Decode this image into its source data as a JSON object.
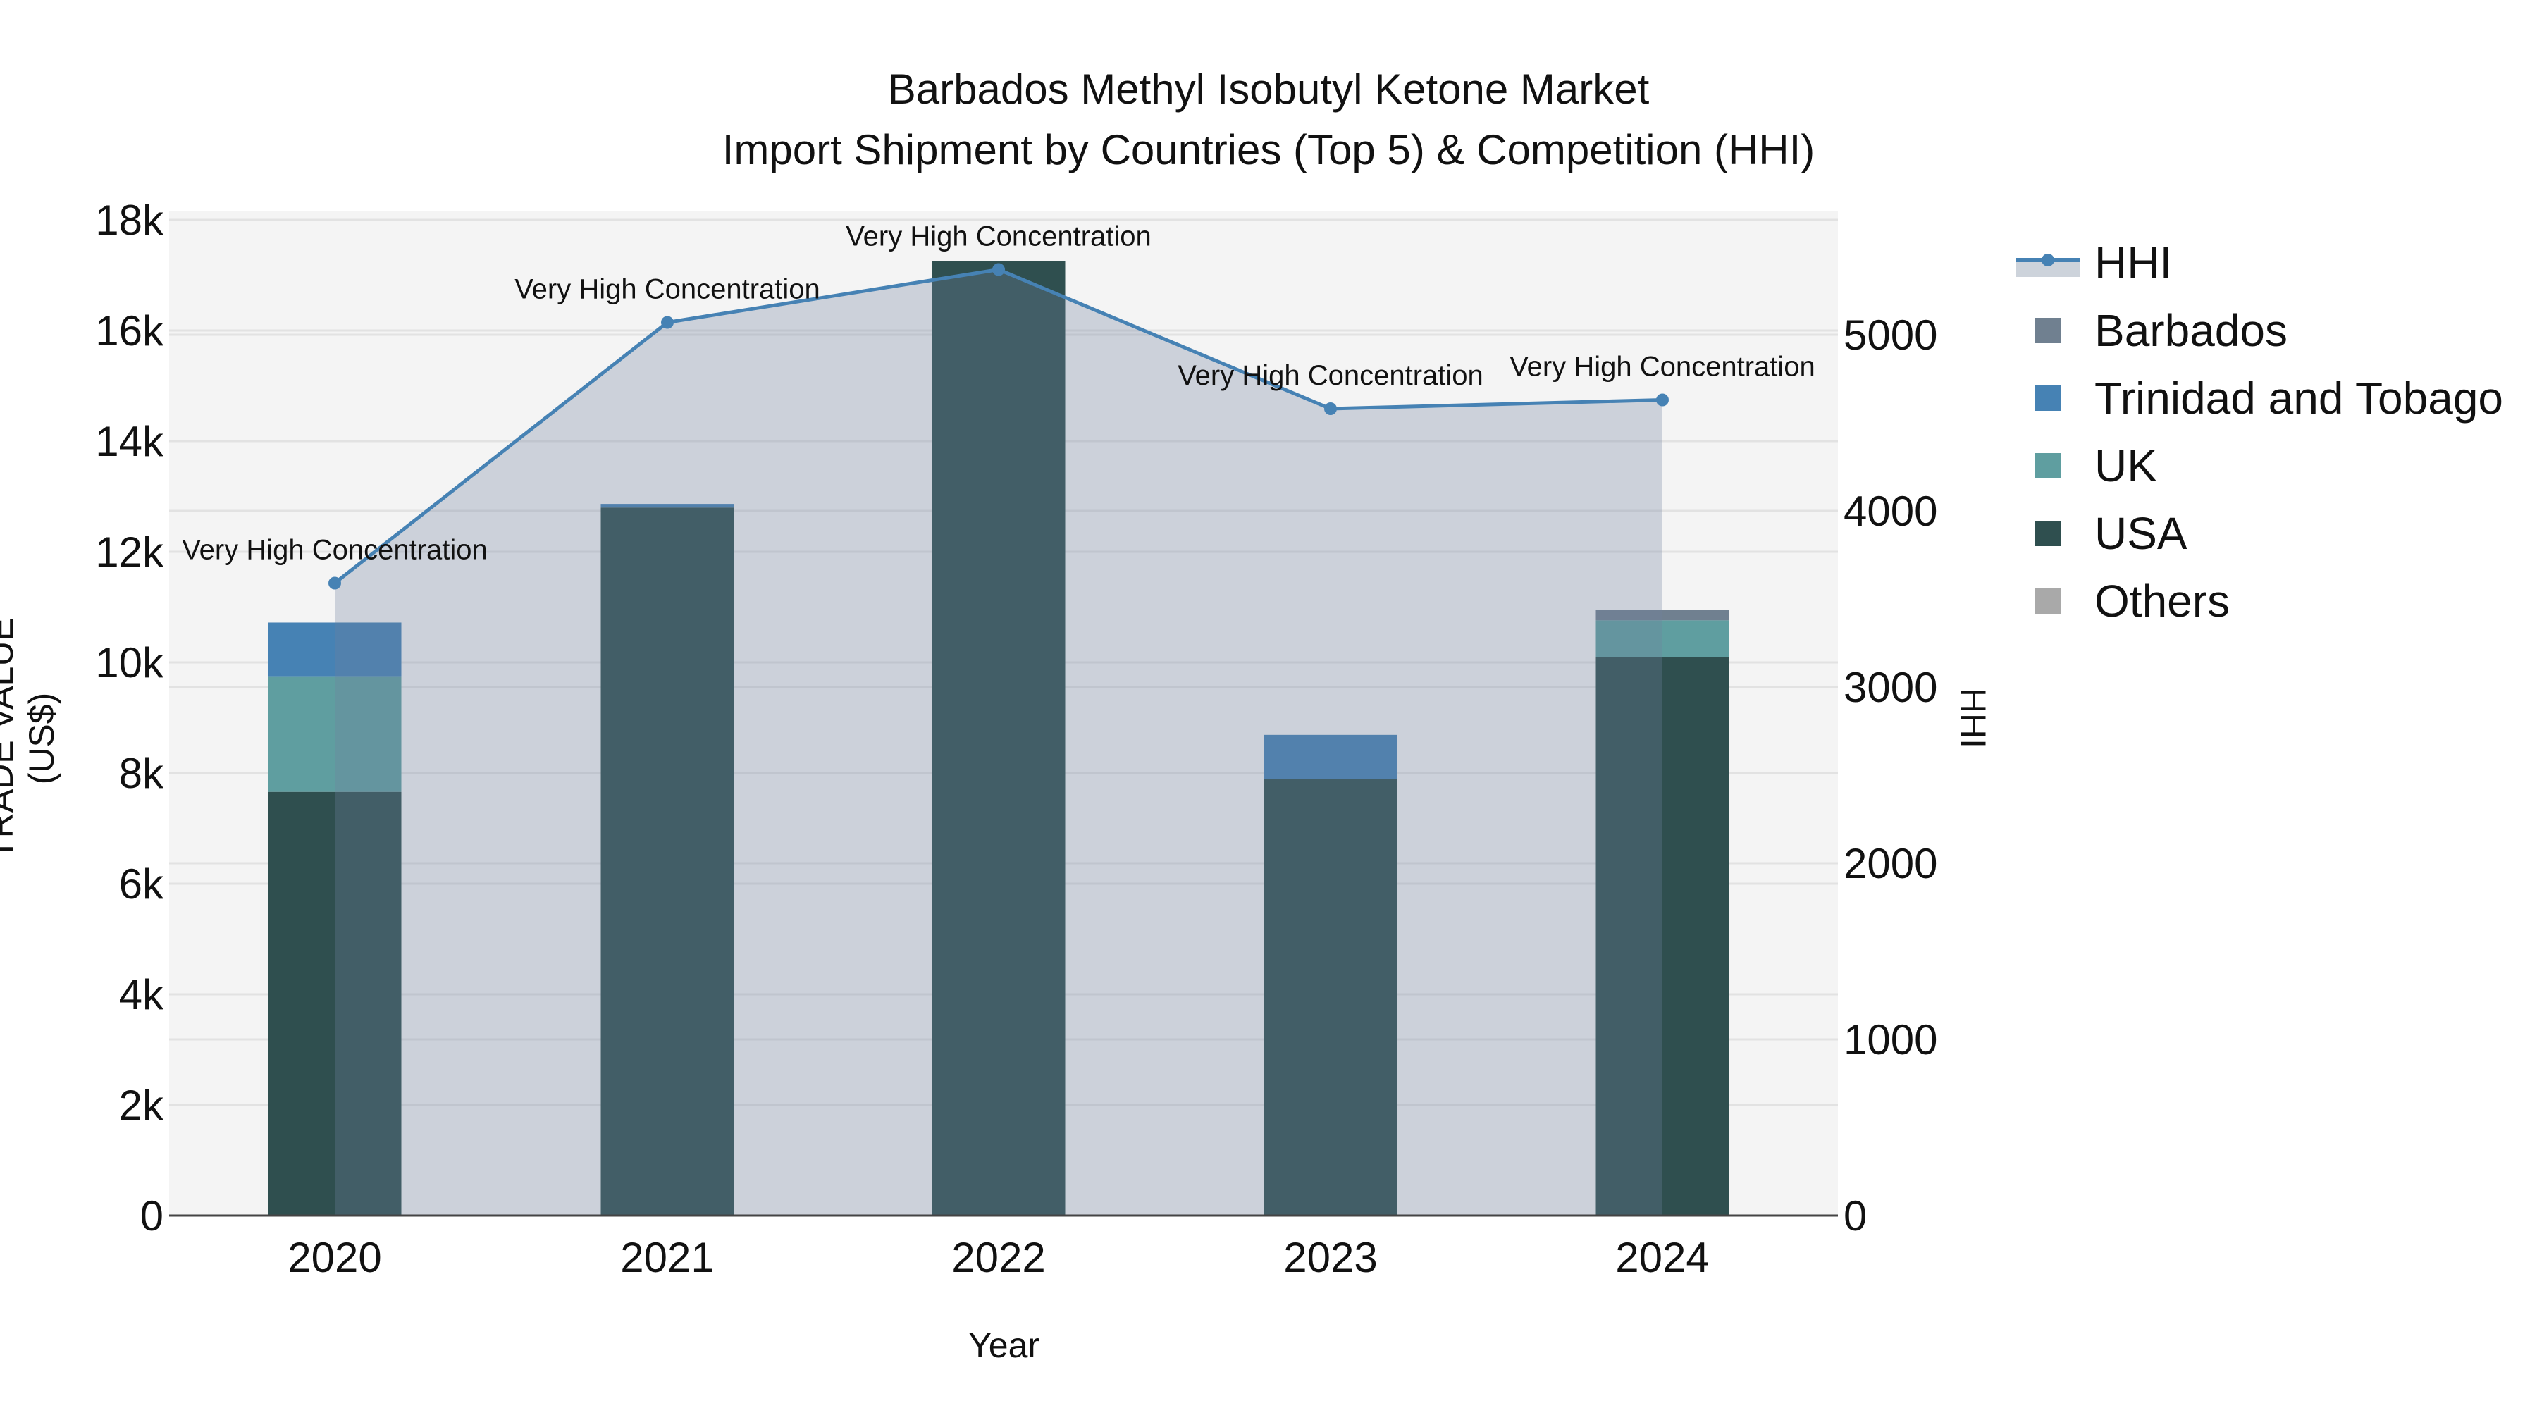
{
  "title": {
    "line1": "Barbados Methyl Isobutyl Ketone Market",
    "line2": "Import Shipment by Countries (Top 5) & Competition (HHI)"
  },
  "axes": {
    "x_title": "Year",
    "y_left_title": "TRADE VALUE (US$)",
    "y_right_title": "HHI",
    "y_left_ticks": [
      "0",
      "2k",
      "4k",
      "6k",
      "8k",
      "10k",
      "12k",
      "14k",
      "16k",
      "18k"
    ],
    "y_right_ticks": [
      "0",
      "1000",
      "2000",
      "3000",
      "4000",
      "5000"
    ],
    "x_ticks": [
      "2020",
      "2021",
      "2022",
      "2023",
      "2024"
    ]
  },
  "legend": [
    {
      "key": "hhi",
      "label": "HHI"
    },
    {
      "key": "barbados",
      "label": "Barbados"
    },
    {
      "key": "tt",
      "label": "Trinidad and Tobago"
    },
    {
      "key": "uk",
      "label": "UK"
    },
    {
      "key": "usa",
      "label": "USA"
    },
    {
      "key": "others",
      "label": "Others"
    }
  ],
  "colors": {
    "barbados": "#708090",
    "tt": "#4682B4",
    "uk": "#5F9EA0",
    "usa": "#2F4F4F",
    "others": "#A9A9A9",
    "hhi_line": "#4682B4",
    "hhi_fill": "rgba(112,128,160,0.3)",
    "plot_bg": "#F4F4F4",
    "grid": "#E2E2E2"
  },
  "chart_data": {
    "type": "bar",
    "title": "Barbados Methyl Isobutyl Ketone Market\nImport Shipment by Countries (Top 5) & Competition (HHI)",
    "xlabel": "Year",
    "ylabel": "TRADE VALUE (US$)",
    "y2label": "HHI",
    "categories": [
      "2020",
      "2021",
      "2022",
      "2023",
      "2024"
    ],
    "barmode": "stack",
    "series": [
      {
        "name": "USA",
        "type": "bar",
        "values": [
          7660,
          12800,
          17250,
          7890,
          10100
        ]
      },
      {
        "name": "UK",
        "type": "bar",
        "values": [
          2090,
          0,
          0,
          0,
          660
        ]
      },
      {
        "name": "Trinidad and Tobago",
        "type": "bar",
        "values": [
          970,
          65,
          0,
          800,
          0
        ]
      },
      {
        "name": "Barbados",
        "type": "bar",
        "values": [
          0,
          0,
          0,
          0,
          190
        ]
      },
      {
        "name": "Others",
        "type": "bar",
        "values": [
          0,
          0,
          0,
          0,
          0
        ]
      },
      {
        "name": "HHI",
        "type": "area-line",
        "axis": "y2",
        "values": [
          3590,
          5070,
          5370,
          4580,
          4630
        ]
      }
    ],
    "annotations": [
      {
        "x": "2020",
        "text": "Very High Concentration"
      },
      {
        "x": "2021",
        "text": "Very High Concentration"
      },
      {
        "x": "2022",
        "text": "Very High Concentration"
      },
      {
        "x": "2023",
        "text": "Very High Concentration"
      },
      {
        "x": "2024",
        "text": "Very High Concentration"
      }
    ],
    "ylim": [
      0,
      18300
    ],
    "y2lim": [
      0,
      5700
    ],
    "grid": true,
    "legend_position": "right"
  }
}
